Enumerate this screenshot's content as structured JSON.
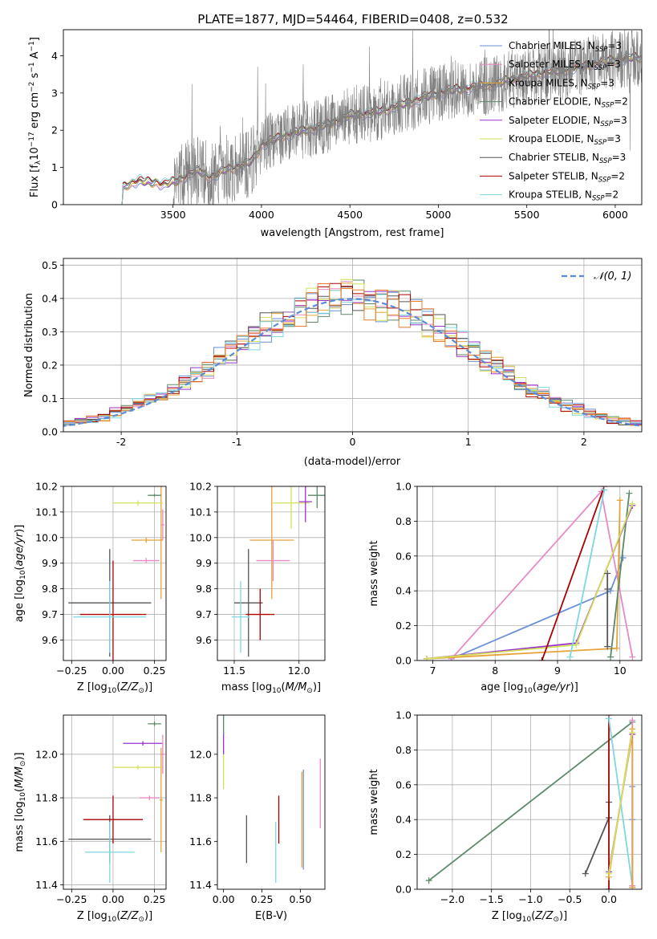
{
  "figure_title": "PLATE=1877, MJD=54464, FIBERID=0408, z=0.532",
  "palette": {
    "Chabrier MILES": "#6a8fd8",
    "Salpeter MILES": "#e78ac3",
    "Kroupa MILES": "#e6a339",
    "Chabrier ELODIE": "#5b8a6b",
    "Salpeter ELODIE": "#9933cc",
    "Kroupa ELODIE": "#d4e157",
    "Chabrier STELIB": "#555555",
    "Salpeter STELIB": "#aa0000",
    "Kroupa STELIB": "#7dd8e0",
    "data": "#808080",
    "orange": "#f07c28"
  },
  "chart_data": [
    {
      "id": "spectrum",
      "type": "line",
      "title": "PLATE=1877, MJD=54464, FIBERID=0408, z=0.532",
      "xlabel": "wavelength [Angstrom, rest frame]",
      "ylabel": "Flux [f_λ 10^-17 erg cm^-2 s^-1 A^-1]",
      "xlim": [
        2880,
        6150
      ],
      "ylim": [
        0,
        4.7
      ],
      "xticks": [
        3500,
        4000,
        4500,
        5000,
        5500,
        6000
      ],
      "yticks": [
        0,
        1,
        2,
        3,
        4
      ],
      "grid": false,
      "legend_position": "top-right",
      "legend": [
        {
          "label": "Chabrier MILES, N_SSP=3",
          "color": "#6a8fd8",
          "main": "Chabrier MILES, N",
          "sub": "SSP",
          "tail": "=3"
        },
        {
          "label": "Salpeter MILES, N_SSP=3",
          "color": "#e78ac3",
          "main": "Salpeter MILES, N",
          "sub": "SSP",
          "tail": "=3"
        },
        {
          "label": "Kroupa MILES, N_SSP=3",
          "color": "#e6a339",
          "main": "Kroupa MILES, N",
          "sub": "SSP",
          "tail": "=3"
        },
        {
          "label": "Chabrier ELODIE, N_SSP=2",
          "color": "#5b8a6b",
          "main": "Chabrier ELODIE, N",
          "sub": "SSP",
          "tail": "=2"
        },
        {
          "label": "Salpeter ELODIE, N_SSP=3",
          "color": "#9933cc",
          "main": "Salpeter ELODIE, N",
          "sub": "SSP",
          "tail": "=3"
        },
        {
          "label": "Kroupa ELODIE, N_SSP=3",
          "color": "#d4e157",
          "main": "Kroupa ELODIE, N",
          "sub": "SSP",
          "tail": "=3"
        },
        {
          "label": "Chabrier STELIB, N_SSP=3",
          "color": "#555555",
          "main": "Chabrier STELIB, N",
          "sub": "SSP",
          "tail": "=3"
        },
        {
          "label": "Salpeter STELIB, N_SSP=2",
          "color": "#aa0000",
          "main": "Salpeter STELIB, N",
          "sub": "SSP",
          "tail": "=2"
        },
        {
          "label": "Kroupa STELIB, N_SSP=2",
          "color": "#7dd8e0",
          "main": "Kroupa STELIB, N",
          "sub": "SSP",
          "tail": "=2"
        }
      ],
      "continuum": {
        "wavelength": [
          3200,
          3250,
          3300,
          3350,
          3400,
          3450,
          3500,
          3550,
          3600,
          3650,
          3700,
          3750,
          3800,
          3850,
          3900,
          3950,
          4000,
          4100,
          4200,
          4300,
          4400,
          4500,
          4600,
          4700,
          4800,
          4900,
          5000,
          5100,
          5200,
          5300,
          5400,
          5500,
          5600,
          5700,
          5800,
          5900,
          6000,
          6100
        ],
        "flux": [
          0.4,
          0.55,
          0.65,
          0.6,
          0.6,
          0.55,
          0.6,
          0.7,
          0.85,
          0.9,
          0.75,
          0.8,
          0.95,
          1.0,
          1.05,
          1.2,
          1.6,
          1.8,
          1.95,
          2.05,
          2.2,
          2.4,
          2.45,
          2.55,
          2.7,
          2.85,
          3.0,
          3.1,
          3.15,
          3.2,
          3.35,
          3.45,
          3.55,
          3.6,
          3.7,
          3.8,
          3.9,
          3.95
        ]
      },
      "noisy_data_start": 3500
    },
    {
      "id": "residuals",
      "type": "histogram",
      "xlabel": "(data-model)/error",
      "ylabel": "Normed distribution",
      "xlim": [
        -2.5,
        2.5
      ],
      "ylim": [
        0,
        0.52
      ],
      "xticks": [
        -2,
        -1,
        0,
        1,
        2
      ],
      "yticks": [
        0,
        0.1,
        0.2,
        0.3,
        0.4,
        0.5
      ],
      "grid": true,
      "legend_position": "top-right",
      "reference_curve": {
        "label": "N(0,1)",
        "display": "𝒩(0, 1)",
        "mean": 0,
        "sigma": 1,
        "color": "#5b8bd8"
      },
      "bin_width": 0.1
    },
    {
      "id": "age-vs-Z",
      "type": "errorbar",
      "xlabel": "Z [log10(Z/Z⊙)]",
      "ylabel": "age [log10(age/yr)]",
      "xlim": [
        -0.3,
        0.32
      ],
      "ylim": [
        9.52,
        10.2
      ],
      "xticks": [
        -0.25,
        0.0,
        0.25
      ],
      "xtick_labels": [
        "−0.25",
        "0.00",
        "0.25"
      ],
      "yticks": [
        9.6,
        9.7,
        9.8,
        9.9,
        10.0,
        10.1,
        10.2
      ],
      "grid": true,
      "points": [
        {
          "model": "Chabrier STELIB",
          "x": -0.02,
          "xerr": 0.25,
          "y": 9.745,
          "yerr": 0.21
        },
        {
          "model": "Salpeter STELIB",
          "x": 0.0,
          "xerr": 0.2,
          "y": 9.7,
          "yerr": 0.21
        },
        {
          "model": "Kroupa STELIB",
          "x": -0.02,
          "xerr": 0.22,
          "y": 9.69,
          "yerr": 0.14
        },
        {
          "model": "Salpeter MILES",
          "x": 0.2,
          "xerr": 0.08,
          "y": 9.91,
          "yerr": 0.01
        },
        {
          "model": "Kroupa MILES",
          "x": 0.2,
          "xerr": 0.09,
          "y": 9.99,
          "yerr": 0.01
        },
        {
          "model": "Kroupa MILES",
          "x": 0.29,
          "xerr": 0.01,
          "y": 9.99,
          "yerr": 0.23
        },
        {
          "model": "Kroupa ELODIE",
          "x": 0.15,
          "xerr": 0.15,
          "y": 10.135,
          "yerr": 0.01
        },
        {
          "model": "Chabrier ELODIE",
          "x": 0.25,
          "xerr": 0.04,
          "y": 10.165,
          "yerr": 0.005
        },
        {
          "model": "Salpeter MILES",
          "x": 0.3,
          "xerr": 0.01,
          "y": 10.05,
          "yerr": 0.06
        }
      ]
    },
    {
      "id": "age-vs-mass",
      "type": "errorbar",
      "xlabel": "mass [log10(M/M⊙)]",
      "ylabel": "",
      "xlim": [
        11.37,
        12.2
      ],
      "ylim": [
        9.52,
        10.2
      ],
      "xticks": [
        11.5,
        12.0
      ],
      "xtick_labels": [
        "11.5",
        "12.0"
      ],
      "yticks": [
        9.6,
        9.7,
        9.8,
        9.9,
        10.0,
        10.1,
        10.2
      ],
      "grid": true,
      "points": [
        {
          "model": "Chabrier STELIB",
          "x": 11.61,
          "xerr": 0.11,
          "y": 9.745,
          "yerr": 0.21
        },
        {
          "model": "Salpeter STELIB",
          "x": 11.7,
          "xerr": 0.11,
          "y": 9.7,
          "yerr": 0.1
        },
        {
          "model": "Kroupa STELIB",
          "x": 11.55,
          "xerr": 0.07,
          "y": 9.69,
          "yerr": 0.14
        },
        {
          "model": "Kroupa MILES",
          "x": 11.79,
          "xerr": 0.17,
          "y": 9.99,
          "yerr": 0.23
        },
        {
          "model": "Salpeter MILES",
          "x": 11.8,
          "xerr": 0.13,
          "y": 9.91,
          "yerr": 0.08
        },
        {
          "model": "Kroupa ELODIE",
          "x": 11.94,
          "xerr": 0.14,
          "y": 10.135,
          "yerr": 0.1
        },
        {
          "model": "Salpeter ELODIE",
          "x": 12.05,
          "xerr": 0.05,
          "y": 10.14,
          "yerr": 0.08
        },
        {
          "model": "Chabrier ELODIE",
          "x": 12.14,
          "xerr": 0.07,
          "y": 10.165,
          "yerr": 0.05
        }
      ]
    },
    {
      "id": "mass-weight-vs-age",
      "type": "line",
      "xlabel": "age [log10(age/yr)]",
      "ylabel": "mass weight",
      "xlim": [
        6.75,
        10.35
      ],
      "ylim": [
        0,
        1.0
      ],
      "xticks": [
        7,
        8,
        9,
        10
      ],
      "xtick_labels": [
        "7",
        "8",
        "9",
        "10"
      ],
      "yticks": [
        0,
        0.2,
        0.4,
        0.6,
        0.8,
        1.0
      ],
      "grid": true,
      "series": [
        {
          "model": "Chabrier MILES",
          "x": [
            7.3,
            9.85,
            10.05
          ],
          "y": [
            0.01,
            0.4,
            0.59
          ]
        },
        {
          "model": "Salpeter MILES",
          "x": [
            7.3,
            9.7,
            10.2
          ],
          "y": [
            0.01,
            0.97,
            0.02
          ]
        },
        {
          "model": "Kroupa MILES",
          "x": [
            6.9,
            9.95,
            10.0
          ],
          "y": [
            0.01,
            0.07,
            0.92
          ]
        },
        {
          "model": "Chabrier ELODIE",
          "x": [
            9.85,
            10.15
          ],
          "y": [
            0.02,
            0.96
          ]
        },
        {
          "model": "Salpeter ELODIE",
          "x": [
            6.9,
            9.3,
            10.2
          ],
          "y": [
            0.01,
            0.1,
            0.89
          ]
        },
        {
          "model": "Kroupa ELODIE",
          "x": [
            6.9,
            9.3,
            10.2
          ],
          "y": [
            0.01,
            0.09,
            0.9
          ]
        },
        {
          "model": "Chabrier STELIB",
          "x": [
            9.8,
            9.8,
            9.8
          ],
          "y": [
            0.08,
            0.41,
            0.5
          ]
        },
        {
          "model": "Salpeter STELIB",
          "x": [
            8.75,
            9.75
          ],
          "y": [
            0.0,
            1.0
          ]
        },
        {
          "model": "Kroupa STELIB",
          "x": [
            9.2,
            9.75
          ],
          "y": [
            0.02,
            0.98
          ]
        }
      ]
    },
    {
      "id": "mass-vs-Z",
      "type": "errorbar",
      "xlabel": "Z [log10(Z/Z⊙)]",
      "ylabel": "mass [log10(M/M⊙)]",
      "xlim": [
        -0.3,
        0.32
      ],
      "ylim": [
        11.38,
        12.18
      ],
      "xticks": [
        -0.25,
        0.0,
        0.25
      ],
      "xtick_labels": [
        "−0.25",
        "0.00",
        "0.25"
      ],
      "yticks": [
        11.4,
        11.6,
        11.8,
        12.0
      ],
      "grid": true,
      "points": [
        {
          "model": "Chabrier STELIB",
          "x": -0.02,
          "xerr": 0.25,
          "y": 11.61,
          "yerr": 0.11
        },
        {
          "model": "Salpeter STELIB",
          "x": 0.0,
          "xerr": 0.18,
          "y": 11.7,
          "yerr": 0.11
        },
        {
          "model": "Kroupa STELIB",
          "x": -0.02,
          "xerr": 0.15,
          "y": 11.55,
          "yerr": 0.14
        },
        {
          "model": "Kroupa MILES",
          "x": 0.29,
          "xerr": 0.01,
          "y": 11.79,
          "yerr": 0.24
        },
        {
          "model": "Salpeter MILES",
          "x": 0.22,
          "xerr": 0.06,
          "y": 11.8,
          "yerr": 0.01
        },
        {
          "model": "Kroupa ELODIE",
          "x": 0.15,
          "xerr": 0.15,
          "y": 11.94,
          "yerr": 0.01
        },
        {
          "model": "Salpeter ELODIE",
          "x": 0.18,
          "xerr": 0.12,
          "y": 12.05,
          "yerr": 0.01
        },
        {
          "model": "Chabrier ELODIE",
          "x": 0.25,
          "xerr": 0.04,
          "y": 12.14,
          "yerr": 0.01
        },
        {
          "model": "Salpeter MILES",
          "x": 0.3,
          "xerr": 0.01,
          "y": 12.0,
          "yerr": 0.09
        }
      ]
    },
    {
      "id": "mass-vs-EBV",
      "type": "errorbar",
      "xlabel": "E(B-V)",
      "ylabel": "",
      "xlim": [
        -0.04,
        0.66
      ],
      "ylim": [
        11.38,
        12.18
      ],
      "xticks": [
        0.0,
        0.25,
        0.5
      ],
      "xtick_labels": [
        "0.00",
        "0.25",
        "0.50"
      ],
      "yticks": [
        11.4,
        11.6,
        11.8,
        12.0
      ],
      "grid": false,
      "points": [
        {
          "model": "Chabrier STELIB",
          "x": 0.15,
          "y": 11.61,
          "yerr": 0.11
        },
        {
          "model": "Salpeter STELIB",
          "x": 0.36,
          "y": 11.7,
          "yerr": 0.11
        },
        {
          "model": "Kroupa STELIB",
          "x": 0.34,
          "y": 11.55,
          "yerr": 0.14
        },
        {
          "model": "Chabrier MILES",
          "x": 0.52,
          "y": 11.7,
          "yerr": 0.23
        },
        {
          "model": "Kroupa MILES",
          "x": 0.51,
          "y": 11.7,
          "yerr": 0.22
        },
        {
          "model": "Salpeter MILES",
          "x": 0.63,
          "y": 11.82,
          "yerr": 0.16
        },
        {
          "model": "Kroupa ELODIE",
          "x": 0.0,
          "y": 11.94,
          "yerr": 0.1
        },
        {
          "model": "Salpeter ELODIE",
          "x": 0.0,
          "y": 12.05,
          "yerr": 0.05
        },
        {
          "model": "Chabrier ELODIE",
          "x": 0.0,
          "y": 12.14,
          "yerr": 0.05
        }
      ]
    },
    {
      "id": "mass-weight-vs-Z",
      "type": "line",
      "xlabel": "Z [log10(Z/Z⊙)]",
      "ylabel": "mass weight",
      "xlim": [
        -2.45,
        0.42
      ],
      "ylim": [
        0,
        1.0
      ],
      "xticks": [
        -2.0,
        -1.5,
        -1.0,
        -0.5,
        0.0
      ],
      "xtick_labels": [
        "−2.0",
        "−1.5",
        "−1.0",
        "−0.5",
        "0.0"
      ],
      "yticks": [
        0,
        0.2,
        0.4,
        0.6,
        0.8,
        1.0
      ],
      "grid": true,
      "series": [
        {
          "model": "Chabrier ELODIE",
          "x": [
            -2.3,
            0.3
          ],
          "y": [
            0.05,
            0.96
          ]
        },
        {
          "model": "Chabrier STELIB",
          "x": [
            -0.3,
            0.0,
            0.0
          ],
          "y": [
            0.09,
            0.41,
            0.5
          ]
        },
        {
          "model": "Salpeter STELIB",
          "x": [
            0.0,
            0.0
          ],
          "y": [
            0.0,
            1.0
          ]
        },
        {
          "model": "Kroupa STELIB",
          "x": [
            0.0,
            0.3
          ],
          "y": [
            0.98,
            0.02
          ]
        },
        {
          "model": "Chabrier MILES",
          "x": [
            0.3,
            0.3,
            0.3
          ],
          "y": [
            0.4,
            0.59,
            0.01
          ]
        },
        {
          "model": "Salpeter MILES",
          "x": [
            0.3,
            0.3
          ],
          "y": [
            0.97,
            0.02
          ]
        },
        {
          "model": "Kroupa MILES",
          "x": [
            0.0,
            0.3,
            0.3
          ],
          "y": [
            0.07,
            0.92,
            0.01
          ]
        },
        {
          "model": "Salpeter ELODIE",
          "x": [
            0.0,
            0.3
          ],
          "y": [
            0.1,
            0.89
          ]
        },
        {
          "model": "Kroupa ELODIE",
          "x": [
            0.0,
            0.3
          ],
          "y": [
            0.09,
            0.9
          ]
        }
      ]
    }
  ]
}
